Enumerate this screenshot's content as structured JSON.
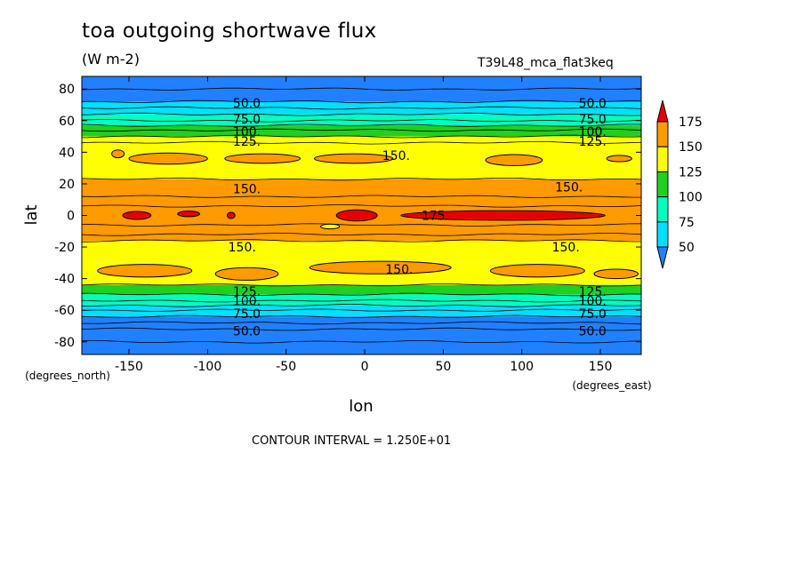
{
  "title": "toa outgoing shortwave flux",
  "units": "(W m-2)",
  "run_label": "T39L48_mca_flat3keq",
  "contour_interval": "CONTOUR INTERVAL = 1.250E+01",
  "chart_data": {
    "type": "contour",
    "xlabel": "lon",
    "ylabel": "lat",
    "x_units": "(degrees_east)",
    "y_units": "(degrees_north)",
    "xlim": [
      -180,
      176
    ],
    "ylim": [
      -88,
      88
    ],
    "xticks": [
      -150,
      -100,
      -50,
      0,
      50,
      100,
      150
    ],
    "xtick_labels": [
      "-150",
      "-100",
      "-50",
      "0",
      "50",
      "100",
      "150"
    ],
    "yticks": [
      80,
      60,
      40,
      20,
      0,
      -20,
      -40,
      -60,
      -80
    ],
    "ytick_labels": [
      "80",
      "60",
      "40",
      "20",
      "0",
      "-20",
      "-40",
      "-60",
      "-80"
    ],
    "contour_interval": 12.5,
    "colorbar": {
      "levels": [
        50,
        75,
        100,
        125,
        150,
        175
      ],
      "labels": [
        "50",
        "75",
        "100",
        "125",
        "150",
        "175"
      ],
      "colors": [
        "#2080ff",
        "#00e0ff",
        "#00ffc0",
        "#20d020",
        "#ffff00",
        "#ff9a00",
        "#e80000"
      ]
    },
    "bands": [
      {
        "lat_from": 88,
        "lat_to": 72,
        "color": "#2080ff"
      },
      {
        "lat_from": 72,
        "lat_to": 64,
        "color": "#00e0ff"
      },
      {
        "lat_from": 64,
        "lat_to": 57,
        "color": "#00ffc0"
      },
      {
        "lat_from": 57,
        "lat_to": 50,
        "color": "#20d020"
      },
      {
        "lat_from": 50,
        "lat_to": 38,
        "color": "#ffff00"
      },
      {
        "lat_from": 38,
        "lat_to": 31,
        "color": "#ffff00"
      },
      {
        "lat_from": 31,
        "lat_to": 23,
        "color": "#ffff00"
      },
      {
        "lat_from": 23,
        "lat_to": -16,
        "color": "#ff9a00"
      },
      {
        "lat_from": -16,
        "lat_to": -30,
        "color": "#ffff00"
      },
      {
        "lat_from": -30,
        "lat_to": -44,
        "color": "#ffff00"
      },
      {
        "lat_from": -44,
        "lat_to": -50,
        "color": "#20d020"
      },
      {
        "lat_from": -50,
        "lat_to": -57,
        "color": "#00ffc0"
      },
      {
        "lat_from": -57,
        "lat_to": -64,
        "color": "#00e0ff"
      },
      {
        "lat_from": -64,
        "lat_to": -88,
        "color": "#2080ff"
      }
    ],
    "isolines": [
      80,
      72,
      68,
      64,
      60,
      57,
      54,
      50,
      46,
      23,
      12,
      6,
      -6,
      -12,
      -16,
      -44,
      -50,
      -54,
      -57,
      -60,
      -64,
      -68,
      -72,
      -80
    ],
    "contour_labels": [
      {
        "text": "50.0",
        "lon": -75,
        "lat": 71
      },
      {
        "text": "50.0",
        "lon": 145,
        "lat": 71
      },
      {
        "text": "75.0",
        "lon": -75,
        "lat": 61
      },
      {
        "text": "75.0",
        "lon": 145,
        "lat": 61
      },
      {
        "text": "100.",
        "lon": -75,
        "lat": 53
      },
      {
        "text": "100.",
        "lon": 145,
        "lat": 53
      },
      {
        "text": "125.",
        "lon": -75,
        "lat": 47
      },
      {
        "text": "125.",
        "lon": 145,
        "lat": 47
      },
      {
        "text": "150.",
        "lon": 20,
        "lat": 38
      },
      {
        "text": "150.",
        "lon": -75,
        "lat": 17
      },
      {
        "text": "150.",
        "lon": 130,
        "lat": 18
      },
      {
        "text": "175.",
        "lon": 45,
        "lat": 0
      },
      {
        "text": "150.",
        "lon": -78,
        "lat": -20
      },
      {
        "text": "150.",
        "lon": 128,
        "lat": -20
      },
      {
        "text": "150.",
        "lon": 22,
        "lat": -34
      },
      {
        "text": "125.",
        "lon": -75,
        "lat": -48
      },
      {
        "text": "125.",
        "lon": 145,
        "lat": -48
      },
      {
        "text": "100.",
        "lon": -75,
        "lat": -54
      },
      {
        "text": "100.",
        "lon": 145,
        "lat": -54
      },
      {
        "text": "75.0",
        "lon": -75,
        "lat": -62
      },
      {
        "text": "75.0",
        "lon": 145,
        "lat": -62
      },
      {
        "text": "50.0",
        "lon": -75,
        "lat": -73
      },
      {
        "text": "50.0",
        "lon": 145,
        "lat": -73
      }
    ],
    "blobs": [
      {
        "lon": -125,
        "lat": 36,
        "rlon": 25,
        "rlat": 3.5,
        "color": "#ff9a00"
      },
      {
        "lon": -157,
        "lat": 39,
        "rlon": 4,
        "rlat": 2.5,
        "color": "#ff9a00"
      },
      {
        "lon": -65,
        "lat": 36,
        "rlon": 24,
        "rlat": 3,
        "color": "#ff9a00"
      },
      {
        "lon": -7,
        "lat": 36,
        "rlon": 25,
        "rlat": 3,
        "color": "#ff9a00"
      },
      {
        "lon": 95,
        "lat": 35,
        "rlon": 18,
        "rlat": 3.5,
        "color": "#ff9a00"
      },
      {
        "lon": 162,
        "lat": 36,
        "rlon": 8,
        "rlat": 2,
        "color": "#ff9a00"
      },
      {
        "lon": -145,
        "lat": 0,
        "rlon": 9,
        "rlat": 2.5,
        "color": "#e80000"
      },
      {
        "lon": -112,
        "lat": 1,
        "rlon": 7,
        "rlat": 1.8,
        "color": "#e80000"
      },
      {
        "lon": -85,
        "lat": 0,
        "rlon": 2.5,
        "rlat": 2,
        "color": "#e80000"
      },
      {
        "lon": -5,
        "lat": 0,
        "rlon": 13,
        "rlat": 3.5,
        "color": "#e80000"
      },
      {
        "lon": 88,
        "lat": 0,
        "rlon": 65,
        "rlat": 3,
        "color": "#e80000"
      },
      {
        "lon": -22,
        "lat": -7,
        "rlon": 6,
        "rlat": 1.5,
        "color": "#ffff00"
      },
      {
        "lon": -140,
        "lat": -35,
        "rlon": 30,
        "rlat": 4,
        "color": "#ff9a00"
      },
      {
        "lon": -75,
        "lat": -37,
        "rlon": 20,
        "rlat": 4,
        "color": "#ff9a00"
      },
      {
        "lon": 10,
        "lat": -33,
        "rlon": 45,
        "rlat": 4,
        "color": "#ff9a00"
      },
      {
        "lon": 110,
        "lat": -35,
        "rlon": 30,
        "rlat": 4,
        "color": "#ff9a00"
      },
      {
        "lon": 160,
        "lat": -37,
        "rlon": 14,
        "rlat": 3,
        "color": "#ff9a00"
      }
    ]
  }
}
